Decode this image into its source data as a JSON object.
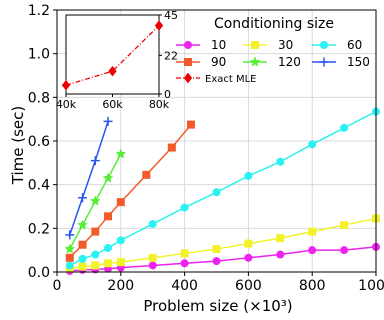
{
  "chart_data": {
    "type": "line",
    "xlabel": "Problem size (×10³)",
    "ylabel": "Time (sec)",
    "xlim": [
      0,
      1000
    ],
    "ylim": [
      0,
      1.2
    ],
    "xticks": [
      "0",
      "200",
      "400",
      "600",
      "800",
      "1000"
    ],
    "yticks": [
      "0.0",
      "0.2",
      "0.4",
      "0.6",
      "0.8",
      "1.0",
      "1.2"
    ],
    "grid": true,
    "legend": {
      "title": "Conditioning size",
      "placement": "top-right",
      "columns": 3
    },
    "series": [
      {
        "name": "10",
        "color": "#ee22ee",
        "marker": "circle",
        "x": [
          40,
          80,
          120,
          160,
          200,
          300,
          400,
          500,
          600,
          700,
          800,
          900,
          1000
        ],
        "y": [
          0.005,
          0.01,
          0.012,
          0.015,
          0.02,
          0.03,
          0.04,
          0.05,
          0.065,
          0.08,
          0.1,
          0.1,
          0.115
        ]
      },
      {
        "name": "30",
        "color": "#f2f22a",
        "marker": "square",
        "x": [
          40,
          80,
          120,
          160,
          200,
          300,
          400,
          500,
          600,
          700,
          800,
          900,
          1000
        ],
        "y": [
          0.015,
          0.025,
          0.03,
          0.04,
          0.045,
          0.065,
          0.085,
          0.105,
          0.13,
          0.155,
          0.185,
          0.215,
          0.245
        ]
      },
      {
        "name": "60",
        "color": "#2af2f2",
        "marker": "circle",
        "x": [
          40,
          80,
          120,
          160,
          200,
          300,
          400,
          500,
          600,
          700,
          800,
          900,
          1000
        ],
        "y": [
          0.03,
          0.06,
          0.08,
          0.11,
          0.145,
          0.22,
          0.295,
          0.365,
          0.44,
          0.505,
          0.585,
          0.66,
          0.735
        ]
      },
      {
        "name": "90",
        "color": "#f25a2a",
        "marker": "square",
        "x": [
          40,
          80,
          120,
          160,
          200,
          280,
          360,
          420
        ],
        "y": [
          0.065,
          0.125,
          0.185,
          0.255,
          0.32,
          0.445,
          0.57,
          0.675
        ]
      },
      {
        "name": "120",
        "color": "#55ee33",
        "marker": "star",
        "x": [
          40,
          80,
          120,
          160,
          200
        ],
        "y": [
          0.105,
          0.215,
          0.325,
          0.43,
          0.54
        ]
      },
      {
        "name": "150",
        "color": "#2a55f2",
        "marker": "plus",
        "x": [
          40,
          80,
          120,
          160
        ],
        "y": [
          0.17,
          0.34,
          0.51,
          0.69
        ]
      }
    ],
    "inset": {
      "xlim": [
        40,
        80
      ],
      "xticks": [
        "40k",
        "60k",
        "80k"
      ],
      "ylim": [
        0,
        45
      ],
      "yticks": [
        "0",
        "22",
        "45"
      ],
      "series": [
        {
          "name": "Exact MLE",
          "color": "#ee0000",
          "marker": "diamond",
          "x": [
            40,
            60,
            80
          ],
          "y": [
            5,
            13,
            39
          ]
        }
      ]
    }
  }
}
